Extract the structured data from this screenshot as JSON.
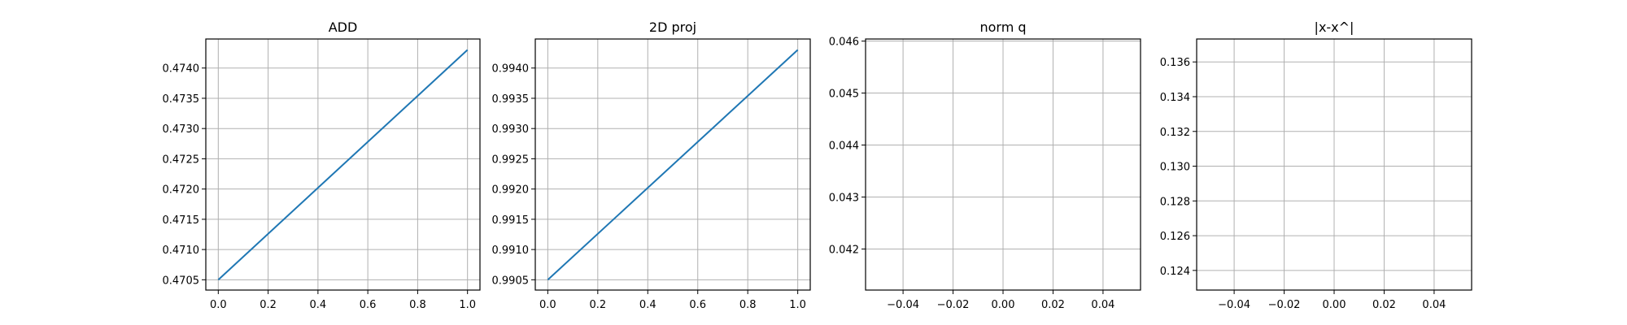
{
  "chart_data": [
    {
      "type": "line",
      "title": "ADD",
      "xlabel": "",
      "ylabel": "",
      "xlim": [
        -0.05,
        1.05
      ],
      "ylim": [
        0.47033,
        0.47448
      ],
      "xticks": [
        0.0,
        0.2,
        0.4,
        0.6,
        0.8,
        1.0
      ],
      "xtick_labels": [
        "0.0",
        "0.2",
        "0.4",
        "0.6",
        "0.8",
        "1.0"
      ],
      "yticks": [
        0.4705,
        0.471,
        0.4715,
        0.472,
        0.4725,
        0.473,
        0.4735,
        0.474
      ],
      "ytick_labels": [
        "0.4705",
        "0.4710",
        "0.4715",
        "0.4720",
        "0.4725",
        "0.4730",
        "0.4735",
        "0.4740"
      ],
      "grid": true,
      "series": [
        {
          "x": [
            0.0,
            1.0
          ],
          "y": [
            0.4705,
            0.4743
          ]
        }
      ]
    },
    {
      "type": "line",
      "title": "2D proj",
      "xlabel": "",
      "ylabel": "",
      "xlim": [
        -0.05,
        1.05
      ],
      "ylim": [
        0.99033,
        0.99448
      ],
      "xticks": [
        0.0,
        0.2,
        0.4,
        0.6,
        0.8,
        1.0
      ],
      "xtick_labels": [
        "0.0",
        "0.2",
        "0.4",
        "0.6",
        "0.8",
        "1.0"
      ],
      "yticks": [
        0.9905,
        0.991,
        0.9915,
        0.992,
        0.9925,
        0.993,
        0.9935,
        0.994
      ],
      "ytick_labels": [
        "0.9905",
        "0.9910",
        "0.9915",
        "0.9920",
        "0.9925",
        "0.9930",
        "0.9935",
        "0.9940"
      ],
      "grid": true,
      "series": [
        {
          "x": [
            0.0,
            1.0
          ],
          "y": [
            0.9905,
            0.9943
          ]
        }
      ]
    },
    {
      "type": "line",
      "title": "norm q",
      "xlabel": "",
      "ylabel": "",
      "xlim": [
        -0.055,
        0.055
      ],
      "ylim": [
        0.04121,
        0.04604
      ],
      "xticks": [
        -0.04,
        -0.02,
        0.0,
        0.02,
        0.04
      ],
      "xtick_labels": [
        "−0.04",
        "−0.02",
        "0.00",
        "0.02",
        "0.04"
      ],
      "yticks": [
        0.042,
        0.043,
        0.044,
        0.045,
        0.046
      ],
      "ytick_labels": [
        "0.042",
        "0.043",
        "0.044",
        "0.045",
        "0.046"
      ],
      "grid": true,
      "series": []
    },
    {
      "type": "line",
      "title": "|x-x^|",
      "xlabel": "",
      "ylabel": "",
      "xlim": [
        -0.055,
        0.055
      ],
      "ylim": [
        0.12287,
        0.13732
      ],
      "xticks": [
        -0.04,
        -0.02,
        0.0,
        0.02,
        0.04
      ],
      "xtick_labels": [
        "−0.04",
        "−0.02",
        "0.00",
        "0.02",
        "0.04"
      ],
      "yticks": [
        0.124,
        0.126,
        0.128,
        0.13,
        0.132,
        0.134,
        0.136
      ],
      "ytick_labels": [
        "0.124",
        "0.126",
        "0.128",
        "0.130",
        "0.132",
        "0.134",
        "0.136"
      ],
      "grid": true,
      "series": []
    }
  ],
  "colors": {
    "series": "#1f77b4",
    "grid": "#b0b0b0",
    "axes": "#000000"
  }
}
